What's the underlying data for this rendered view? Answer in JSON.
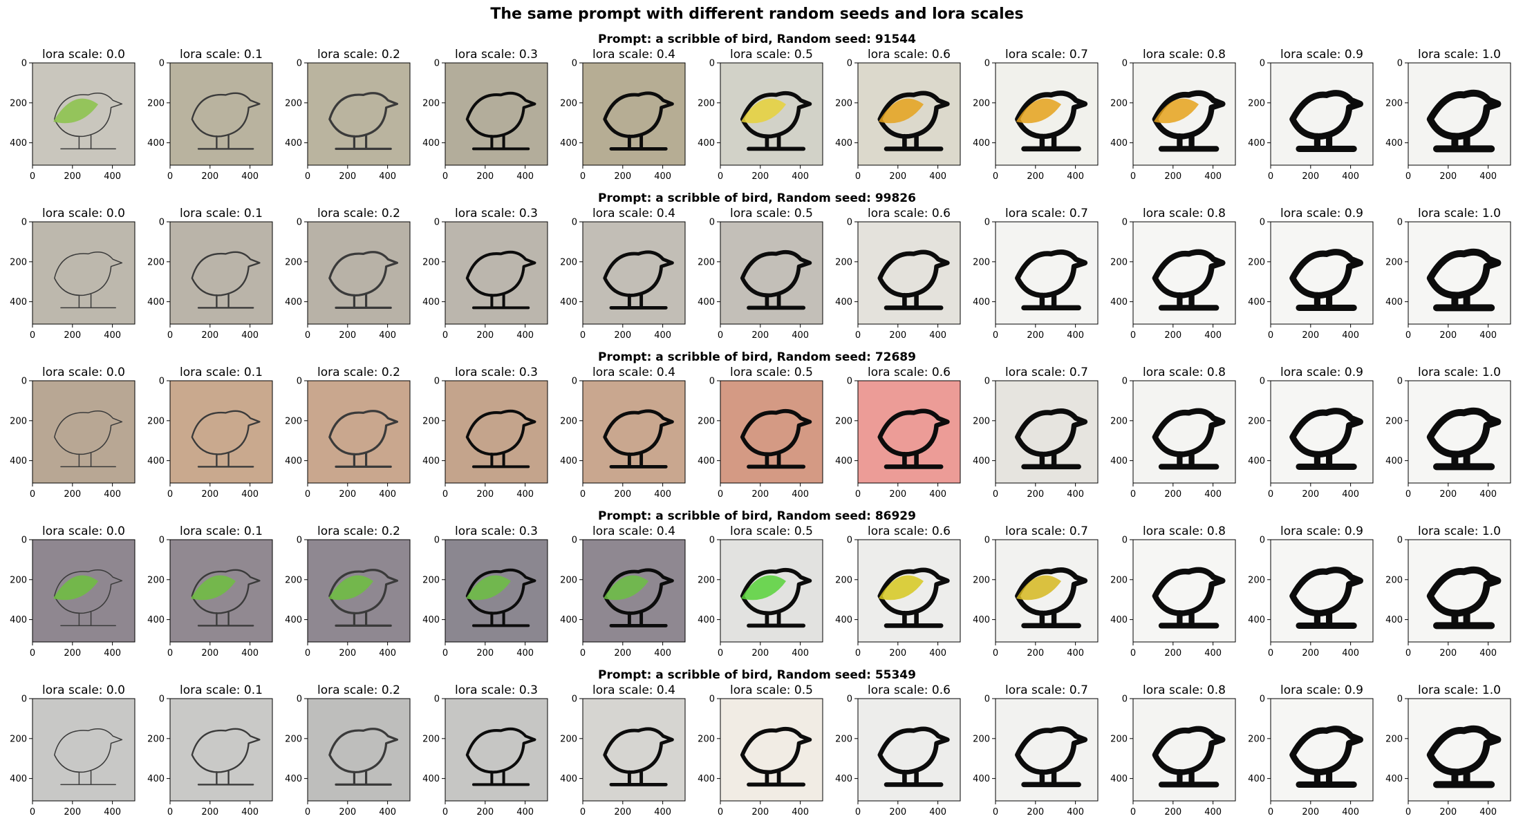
{
  "figure": {
    "suptitle": "The same prompt with different random seeds and lora scales",
    "colors": {
      "axis": "#000000",
      "background": "#ffffff"
    }
  },
  "subplot_title_prefix": "lora scale: ",
  "lora_scales": [
    "0.0",
    "0.1",
    "0.2",
    "0.3",
    "0.4",
    "0.5",
    "0.6",
    "0.7",
    "0.8",
    "0.9",
    "1.0"
  ],
  "axes": {
    "x_ticks": [
      "0",
      "200",
      "400"
    ],
    "y_ticks": [
      "0",
      "200",
      "400"
    ],
    "xlim": [
      0,
      512
    ],
    "ylim": [
      512,
      0
    ]
  },
  "rows": [
    {
      "title": "Prompt: a scribble of bird, Random seed: 91544",
      "seed": "91544",
      "bg_colors": [
        "#c9c6bd",
        "#b9b39f",
        "#bab49f",
        "#b3ad9b",
        "#b6ad94",
        "#d2d2c8",
        "#dcd9cc",
        "#f1f1ec",
        "#f3f3f0",
        "#f4f4f2",
        "#f4f4f2"
      ],
      "accent_colors": [
        "#8bc34a",
        "",
        "",
        "",
        "",
        "#e8d23a",
        "#e5a21c",
        "#e5a21c",
        "#e5a21c",
        "",
        ""
      ]
    },
    {
      "title": "Prompt: a scribble of bird, Random seed: 99826",
      "seed": "99826",
      "bg_colors": [
        "#bdb8ad",
        "#bab4a9",
        "#b8b2a7",
        "#bbb6ad",
        "#c2beb6",
        "#c3bfb8",
        "#e4e2dc",
        "#f4f4f2",
        "#f6f6f4",
        "#f6f6f4",
        "#f6f6f4"
      ],
      "accent_colors": [
        "",
        "",
        "",
        "",
        "",
        "",
        "",
        "",
        "",
        "",
        ""
      ]
    },
    {
      "title": "Prompt: a scribble of bird, Random seed: 72689",
      "seed": "72689",
      "bg_colors": [
        "#b8a794",
        "#c9a98e",
        "#c9a78e",
        "#c4a48c",
        "#c9a78f",
        "#d49a84",
        "#ec9c97",
        "#e6e4df",
        "#f4f4f2",
        "#f6f6f4",
        "#f6f6f4"
      ],
      "accent_colors": [
        "",
        "",
        "",
        "",
        "",
        "",
        "",
        "",
        "",
        "",
        ""
      ]
    },
    {
      "title": "Prompt: a scribble of bird, Random seed: 86929",
      "seed": "86929",
      "bg_colors": [
        "#8f8790",
        "#918991",
        "#8f8891",
        "#8b8790",
        "#8f8891",
        "#e2e2e0",
        "#ededeb",
        "#f2f2f0",
        "#f6f6f4",
        "#f6f6f4",
        "#f6f6f4"
      ],
      "accent_colors": [
        "#6fbf3f",
        "#6fbf3f",
        "#6fbf3f",
        "#6cbf43",
        "#6cbf43",
        "#58d23a",
        "#d6c820",
        "#d6b820",
        "",
        "",
        ""
      ]
    },
    {
      "title": "Prompt: a scribble of bird, Random seed: 55349",
      "seed": "55349",
      "bg_colors": [
        "#c8c8c6",
        "#c9c9c7",
        "#bebebc",
        "#c6c6c4",
        "#d6d5d1",
        "#f1ece4",
        "#ededeb",
        "#f2f2f0",
        "#f4f4f2",
        "#f6f6f4",
        "#f6f6f4"
      ],
      "accent_colors": [
        "",
        "",
        "",
        "",
        "",
        "",
        "",
        "",
        "",
        "",
        ""
      ]
    }
  ]
}
